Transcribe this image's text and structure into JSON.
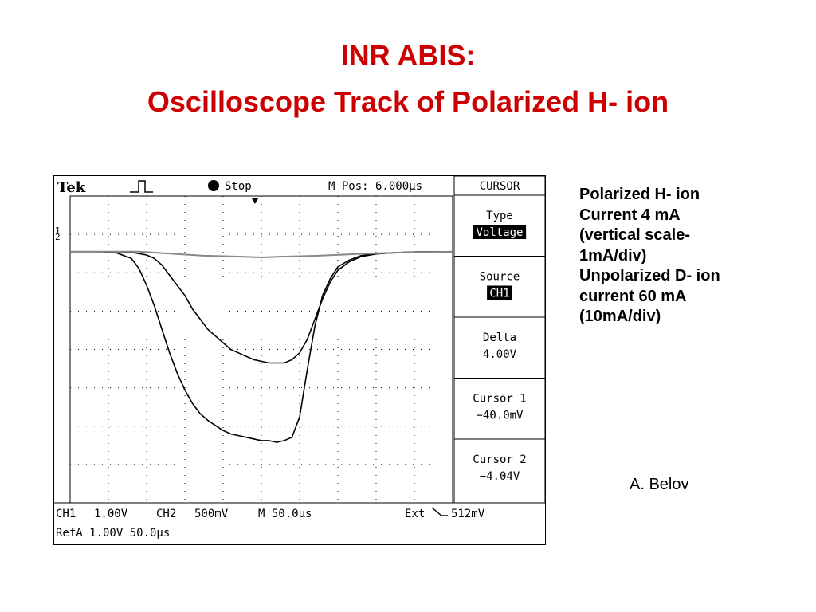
{
  "page": {
    "title_line1": "INR ABIS:",
    "title_line2": "Oscilloscope Track of Polarized H- ion",
    "author": "A. Belov",
    "description_lines": [
      "Polarized H- ion",
      "Current 4 mA",
      "(vertical scale-",
      "1mA/div)",
      "Unpolarized D- ion",
      "current 60 mA",
      "(10mA/div)"
    ]
  },
  "scope": {
    "brand": "Tek",
    "status": "Stop",
    "mpos": "M Pos: 6.000µs",
    "menu_title": "CURSOR",
    "menu": [
      {
        "label": "Type",
        "value": "Voltage",
        "highlight": true
      },
      {
        "label": "Source",
        "value": "CH1",
        "highlight": true
      },
      {
        "label": "Delta",
        "value": "4.00V",
        "highlight": false
      },
      {
        "label": "Cursor 1",
        "value": "−40.0mV",
        "highlight": false
      },
      {
        "label": "Cursor 2",
        "value": "−4.04V",
        "highlight": false
      }
    ],
    "bottom_row1": {
      "ch1": "CH1",
      "ch1_scale": "1.00V",
      "ch2": "CH2",
      "ch2_scale": "500mV",
      "time": "M 50.0µs",
      "trigger_src": "Ext",
      "trigger_level": "512mV"
    },
    "bottom_row2": "RefA  1.00V 50.0µs",
    "ch_marker_1": "1",
    "ch_marker_2": "2",
    "colors": {
      "trace": "#000000",
      "ref_trace": "#888888",
      "grid": "#000000"
    }
  },
  "chart_data": {
    "type": "line",
    "xlabel": "",
    "ylabel": "",
    "xlim": [
      0,
      10
    ],
    "ylim": [
      -8,
      0
    ],
    "grid": true,
    "series": [
      {
        "x": [
          0,
          0.4,
          0.8,
          1.2,
          1.6,
          2.0,
          2.2,
          2.4,
          2.6,
          2.8,
          3.0,
          3.2,
          3.4,
          3.6,
          3.8,
          4.0,
          4.2,
          4.4,
          4.6,
          4.8,
          5.0,
          5.2,
          5.4,
          5.6,
          5.8,
          6.0,
          6.2,
          6.4,
          6.6,
          6.8,
          7.0,
          7.3,
          7.6,
          8.0,
          8.5,
          9.0,
          10.0
        ],
        "y": [
          0,
          0,
          0,
          0,
          -0.02,
          -0.1,
          -0.2,
          -0.4,
          -0.7,
          -1.0,
          -1.3,
          -1.7,
          -2.0,
          -2.3,
          -2.5,
          -2.7,
          -2.9,
          -3.0,
          -3.1,
          -3.2,
          -3.25,
          -3.3,
          -3.3,
          -3.3,
          -3.2,
          -3.0,
          -2.6,
          -2.0,
          -1.4,
          -0.9,
          -0.55,
          -0.3,
          -0.15,
          -0.07,
          -0.03,
          -0.01,
          0
        ]
      },
      {
        "x": [
          0,
          0.4,
          0.8,
          1.2,
          1.6,
          1.8,
          2.0,
          2.2,
          2.4,
          2.6,
          2.8,
          3.0,
          3.2,
          3.4,
          3.6,
          3.8,
          4.0,
          4.2,
          4.4,
          4.6,
          4.8,
          5.0,
          5.2,
          5.4,
          5.6,
          5.8,
          6.0,
          6.2,
          6.4,
          6.6,
          6.8,
          7.0,
          7.3,
          7.6,
          8.0,
          8.5,
          9.0,
          10.0
        ],
        "y": [
          0,
          0,
          0,
          -0.03,
          -0.2,
          -0.5,
          -1.0,
          -1.6,
          -2.3,
          -3.0,
          -3.6,
          -4.1,
          -4.5,
          -4.8,
          -5.0,
          -5.15,
          -5.3,
          -5.4,
          -5.45,
          -5.5,
          -5.55,
          -5.6,
          -5.6,
          -5.65,
          -5.6,
          -5.5,
          -4.9,
          -3.5,
          -2.2,
          -1.3,
          -0.8,
          -0.45,
          -0.25,
          -0.12,
          -0.06,
          -0.03,
          -0.01,
          0
        ]
      },
      {
        "x": [
          0,
          1.8,
          2.5,
          3.5,
          4.5,
          5.0,
          5.5,
          6.5,
          7.5,
          8.5,
          10.0
        ],
        "y": [
          0,
          0,
          -0.05,
          -0.12,
          -0.15,
          -0.17,
          -0.15,
          -0.12,
          -0.07,
          -0.03,
          0
        ]
      }
    ]
  }
}
